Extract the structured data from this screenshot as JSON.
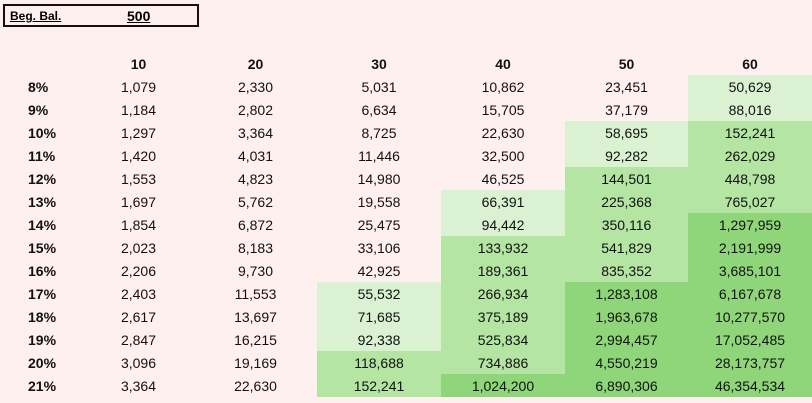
{
  "beginning_balance": {
    "label": "Beg. Bal.",
    "value": "500"
  },
  "years": [
    "10",
    "20",
    "30",
    "40",
    "50",
    "60"
  ],
  "shade_colors": {
    "light": "#daf2d1",
    "medium": "#b4e5a2",
    "dark": "#8ed679"
  },
  "rows": [
    {
      "rate": "8%",
      "values": [
        "1,079",
        "2,330",
        "5,031",
        "10,862",
        "23,451",
        "50,629"
      ],
      "shade": [
        0,
        0,
        0,
        0,
        0,
        1
      ]
    },
    {
      "rate": "9%",
      "values": [
        "1,184",
        "2,802",
        "6,634",
        "15,705",
        "37,179",
        "88,016"
      ],
      "shade": [
        0,
        0,
        0,
        0,
        0,
        1
      ]
    },
    {
      "rate": "10%",
      "values": [
        "1,297",
        "3,364",
        "8,725",
        "22,630",
        "58,695",
        "152,241"
      ],
      "shade": [
        0,
        0,
        0,
        0,
        1,
        2
      ]
    },
    {
      "rate": "11%",
      "values": [
        "1,420",
        "4,031",
        "11,446",
        "32,500",
        "92,282",
        "262,029"
      ],
      "shade": [
        0,
        0,
        0,
        0,
        1,
        2
      ]
    },
    {
      "rate": "12%",
      "values": [
        "1,553",
        "4,823",
        "14,980",
        "46,525",
        "144,501",
        "448,798"
      ],
      "shade": [
        0,
        0,
        0,
        0,
        2,
        2
      ]
    },
    {
      "rate": "13%",
      "values": [
        "1,697",
        "5,762",
        "19,558",
        "66,391",
        "225,368",
        "765,027"
      ],
      "shade": [
        0,
        0,
        0,
        1,
        2,
        2
      ]
    },
    {
      "rate": "14%",
      "values": [
        "1,854",
        "6,872",
        "25,475",
        "94,442",
        "350,116",
        "1,297,959"
      ],
      "shade": [
        0,
        0,
        0,
        1,
        2,
        3
      ]
    },
    {
      "rate": "15%",
      "values": [
        "2,023",
        "8,183",
        "33,106",
        "133,932",
        "541,829",
        "2,191,999"
      ],
      "shade": [
        0,
        0,
        0,
        2,
        2,
        3
      ]
    },
    {
      "rate": "16%",
      "values": [
        "2,206",
        "9,730",
        "42,925",
        "189,361",
        "835,352",
        "3,685,101"
      ],
      "shade": [
        0,
        0,
        0,
        2,
        2,
        3
      ]
    },
    {
      "rate": "17%",
      "values": [
        "2,403",
        "11,553",
        "55,532",
        "266,934",
        "1,283,108",
        "6,167,678"
      ],
      "shade": [
        0,
        0,
        1,
        2,
        3,
        3
      ]
    },
    {
      "rate": "18%",
      "values": [
        "2,617",
        "13,697",
        "71,685",
        "375,189",
        "1,963,678",
        "10,277,570"
      ],
      "shade": [
        0,
        0,
        1,
        2,
        3,
        3
      ]
    },
    {
      "rate": "19%",
      "values": [
        "2,847",
        "16,215",
        "92,338",
        "525,834",
        "2,994,457",
        "17,052,485"
      ],
      "shade": [
        0,
        0,
        1,
        2,
        3,
        3
      ]
    },
    {
      "rate": "20%",
      "values": [
        "3,096",
        "19,169",
        "118,688",
        "734,886",
        "4,550,219",
        "28,173,757"
      ],
      "shade": [
        0,
        0,
        2,
        2,
        3,
        3
      ]
    },
    {
      "rate": "21%",
      "values": [
        "3,364",
        "22,630",
        "152,241",
        "1,024,200",
        "6,890,306",
        "46,354,534"
      ],
      "shade": [
        0,
        0,
        2,
        3,
        3,
        3
      ]
    }
  ]
}
